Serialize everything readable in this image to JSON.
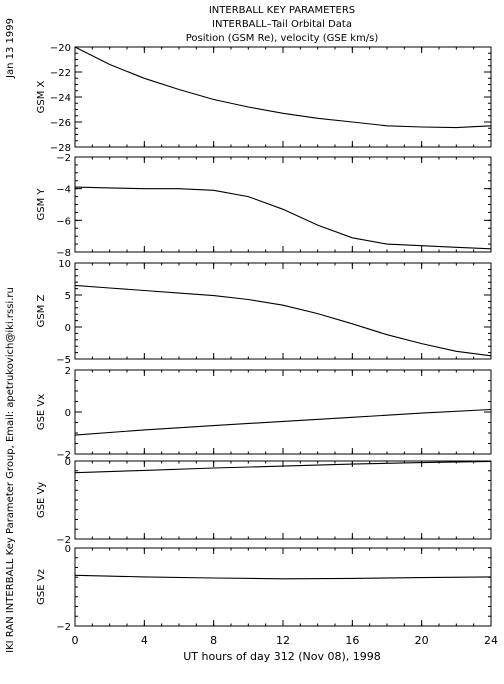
{
  "header": {
    "date": "Jan 13 1999",
    "line1": "INTERBALL KEY PARAMETERS",
    "line2": "INTERBALL–Tail Orbital Data",
    "line3": "Position (GSM Re), velocity (GSE km/s)"
  },
  "side_credit": "IKI RAN INTERBALL Key Parameter Group, Email: apetrukovich@iki.rssi.ru",
  "x_axis": {
    "label": "UT hours of day 312 (Nov 08), 1998",
    "range": [
      0,
      24
    ],
    "ticks": [
      0,
      4,
      8,
      12,
      16,
      20,
      24
    ],
    "minor_step": 1
  },
  "chart_data": [
    {
      "type": "line",
      "ylabel": "GSM X",
      "ylim": [
        -28,
        -20
      ],
      "yticks": [
        -28,
        -26,
        -24,
        -22,
        -20
      ],
      "y_minor_step": 0.5,
      "x": [
        0,
        2,
        4,
        6,
        8,
        10,
        12,
        14,
        16,
        18,
        20,
        22,
        24
      ],
      "y": [
        -20.0,
        -21.4,
        -22.5,
        -23.4,
        -24.2,
        -24.8,
        -25.3,
        -25.7,
        -26.0,
        -26.3,
        -26.4,
        -26.45,
        -26.3
      ]
    },
    {
      "type": "line",
      "ylabel": "GSM Y",
      "ylim": [
        -8,
        -2
      ],
      "yticks": [
        -8,
        -6,
        -4,
        -2
      ],
      "y_minor_step": 0.5,
      "x": [
        0,
        2,
        4,
        6,
        8,
        10,
        12,
        14,
        16,
        18,
        20,
        22,
        24
      ],
      "y": [
        -3.9,
        -3.95,
        -4.0,
        -4.0,
        -4.1,
        -4.5,
        -5.3,
        -6.3,
        -7.1,
        -7.5,
        -7.6,
        -7.7,
        -7.8
      ]
    },
    {
      "type": "line",
      "ylabel": "GSM Z",
      "ylim": [
        -5,
        10
      ],
      "yticks": [
        -5,
        0,
        5,
        10
      ],
      "y_minor_step": 1,
      "x": [
        0,
        2,
        4,
        6,
        8,
        10,
        12,
        14,
        16,
        18,
        20,
        22,
        24
      ],
      "y": [
        6.5,
        6.1,
        5.7,
        5.3,
        4.9,
        4.3,
        3.4,
        2.1,
        0.5,
        -1.2,
        -2.6,
        -3.8,
        -4.5
      ]
    },
    {
      "type": "line",
      "ylabel": "GSE Vx",
      "ylim": [
        -2,
        2
      ],
      "yticks": [
        -2,
        0,
        2
      ],
      "y_minor_step": 0.5,
      "x": [
        0,
        4,
        8,
        12,
        16,
        20,
        24
      ],
      "y": [
        -1.1,
        -0.85,
        -0.65,
        -0.45,
        -0.25,
        -0.05,
        0.12
      ]
    },
    {
      "type": "line",
      "ylabel": "GSE Vy",
      "ylim": [
        -2,
        0
      ],
      "yticks": [
        -2,
        0
      ],
      "y_minor_step": 0.25,
      "x": [
        0,
        4,
        8,
        12,
        16,
        20,
        24
      ],
      "y": [
        -0.3,
        -0.24,
        -0.18,
        -0.13,
        -0.08,
        -0.04,
        -0.01
      ]
    },
    {
      "type": "line",
      "ylabel": "GSE Vz",
      "ylim": [
        -2,
        0
      ],
      "yticks": [
        -2,
        0
      ],
      "y_minor_step": 0.25,
      "x": [
        0,
        4,
        8,
        12,
        16,
        20,
        24
      ],
      "y": [
        -0.7,
        -0.74,
        -0.77,
        -0.79,
        -0.78,
        -0.76,
        -0.74
      ]
    }
  ]
}
